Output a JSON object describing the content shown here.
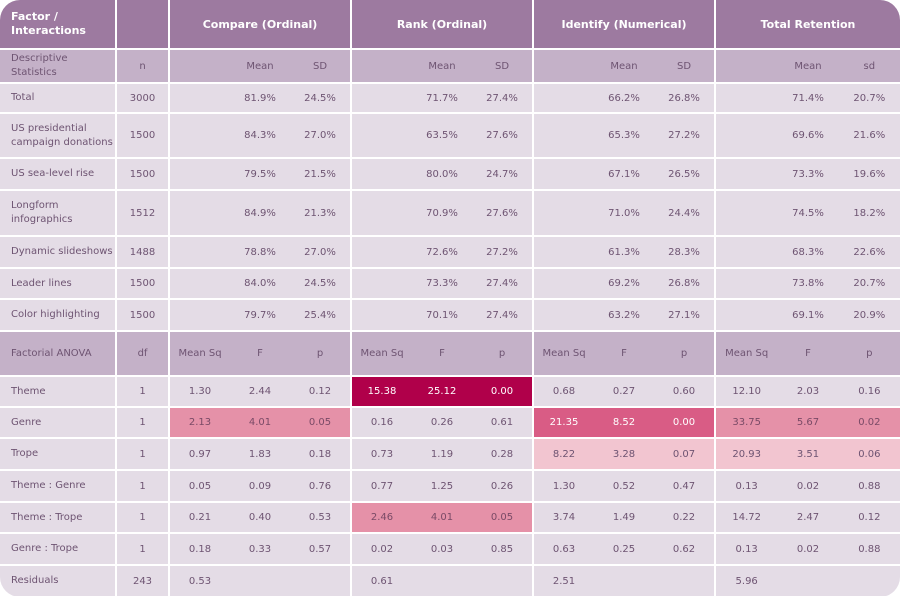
{
  "header": {
    "label": "Factor / Interactions",
    "groups": [
      "Compare (Ordinal)",
      "Rank (Ordinal)",
      "Identify (Numerical)",
      "Total Retention"
    ]
  },
  "descriptive_header": {
    "label": "Descriptive Statistics",
    "n": "n",
    "groups": [
      [
        "",
        "Mean",
        "SD"
      ],
      [
        "",
        "Mean",
        "SD"
      ],
      [
        "",
        "Mean",
        "SD"
      ],
      [
        "",
        "Mean",
        "sd"
      ]
    ]
  },
  "descriptive_rows": [
    {
      "label": "Total",
      "n": "3000",
      "groups": [
        [
          "",
          "81.9%",
          "24.5%"
        ],
        [
          "",
          "71.7%",
          "27.4%"
        ],
        [
          "",
          "66.2%",
          "26.8%"
        ],
        [
          "",
          "71.4%",
          "20.7%"
        ]
      ]
    },
    {
      "label": "US presidential campaign donations",
      "n": "1500",
      "groups": [
        [
          "",
          "84.3%",
          "27.0%"
        ],
        [
          "",
          "63.5%",
          "27.6%"
        ],
        [
          "",
          "65.3%",
          "27.2%"
        ],
        [
          "",
          "69.6%",
          "21.6%"
        ]
      ]
    },
    {
      "label": "US sea-level rise",
      "n": "1500",
      "groups": [
        [
          "",
          "79.5%",
          "21.5%"
        ],
        [
          "",
          "80.0%",
          "24.7%"
        ],
        [
          "",
          "67.1%",
          "26.5%"
        ],
        [
          "",
          "73.3%",
          "19.6%"
        ]
      ]
    },
    {
      "label": "Longform infographics",
      "n": "1512",
      "groups": [
        [
          "",
          "84.9%",
          "21.3%"
        ],
        [
          "",
          "70.9%",
          "27.6%"
        ],
        [
          "",
          "71.0%",
          "24.4%"
        ],
        [
          "",
          "74.5%",
          "18.2%"
        ]
      ]
    },
    {
      "label": "Dynamic slideshows",
      "n": "1488",
      "groups": [
        [
          "",
          "78.8%",
          "27.0%"
        ],
        [
          "",
          "72.6%",
          "27.2%"
        ],
        [
          "",
          "61.3%",
          "28.3%"
        ],
        [
          "",
          "68.3%",
          "22.6%"
        ]
      ]
    },
    {
      "label": "Leader lines",
      "n": "1500",
      "groups": [
        [
          "",
          "84.0%",
          "24.5%"
        ],
        [
          "",
          "73.3%",
          "27.4%"
        ],
        [
          "",
          "69.2%",
          "26.8%"
        ],
        [
          "",
          "73.8%",
          "20.7%"
        ]
      ]
    },
    {
      "label": "Color highlighting",
      "n": "1500",
      "groups": [
        [
          "",
          "79.7%",
          "25.4%"
        ],
        [
          "",
          "70.1%",
          "27.4%"
        ],
        [
          "",
          "63.2%",
          "27.1%"
        ],
        [
          "",
          "69.1%",
          "20.9%"
        ]
      ]
    }
  ],
  "anova_header": {
    "label": "Factorial ANOVA",
    "n": "df",
    "groups": [
      [
        "Mean Sq",
        "F",
        "p"
      ],
      [
        "Mean Sq",
        "F",
        "p"
      ],
      [
        "Mean Sq",
        "F",
        "p"
      ],
      [
        "Mean Sq",
        "F",
        "p"
      ]
    ]
  },
  "anova_rows": [
    {
      "label": "Theme",
      "n": "1",
      "groups": [
        [
          "1.30",
          "2.44",
          "0.12"
        ],
        [
          "15.38",
          "25.12",
          "0.00"
        ],
        [
          "0.68",
          "0.27",
          "0.60"
        ],
        [
          "12.10",
          "2.03",
          "0.16"
        ]
      ],
      "highlight": [
        "",
        "dark",
        "",
        ""
      ]
    },
    {
      "label": "Genre",
      "n": "1",
      "groups": [
        [
          "2.13",
          "4.01",
          "0.05"
        ],
        [
          "0.16",
          "0.26",
          "0.61"
        ],
        [
          "21.35",
          "8.52",
          "0.00"
        ],
        [
          "33.75",
          "5.67",
          "0.02"
        ]
      ],
      "highlight": [
        "lmed",
        "",
        "med",
        "lmed"
      ]
    },
    {
      "label": "Trope",
      "n": "1",
      "groups": [
        [
          "0.97",
          "1.83",
          "0.18"
        ],
        [
          "0.73",
          "1.19",
          "0.28"
        ],
        [
          "8.22",
          "3.28",
          "0.07"
        ],
        [
          "20.93",
          "3.51",
          "0.06"
        ]
      ],
      "highlight": [
        "",
        "",
        "light",
        "light"
      ]
    },
    {
      "label": "Theme : Genre",
      "n": "1",
      "groups": [
        [
          "0.05",
          "0.09",
          "0.76"
        ],
        [
          "0.77",
          "1.25",
          "0.26"
        ],
        [
          "1.30",
          "0.52",
          "0.47"
        ],
        [
          "0.13",
          "0.02",
          "0.88"
        ]
      ],
      "highlight": [
        "",
        "",
        "",
        ""
      ]
    },
    {
      "label": "Theme : Trope",
      "n": "1",
      "groups": [
        [
          "0.21",
          "0.40",
          "0.53"
        ],
        [
          "2.46",
          "4.01",
          "0.05"
        ],
        [
          "3.74",
          "1.49",
          "0.22"
        ],
        [
          "14.72",
          "2.47",
          "0.12"
        ]
      ],
      "highlight": [
        "",
        "lmed",
        "",
        ""
      ]
    },
    {
      "label": "Genre : Trope",
      "n": "1",
      "groups": [
        [
          "0.18",
          "0.33",
          "0.57"
        ],
        [
          "0.02",
          "0.03",
          "0.85"
        ],
        [
          "0.63",
          "0.25",
          "0.62"
        ],
        [
          "0.13",
          "0.02",
          "0.88"
        ]
      ],
      "highlight": [
        "",
        "",
        "",
        ""
      ]
    },
    {
      "label": "Residuals",
      "n": "243",
      "groups": [
        [
          "0.53",
          "",
          ""
        ],
        [
          "0.61",
          "",
          ""
        ],
        [
          "2.51",
          "",
          ""
        ],
        [
          "5.96",
          "",
          ""
        ]
      ],
      "highlight": [
        "",
        "",
        "",
        ""
      ]
    }
  ],
  "colors": {
    "header": "#9d7aa0",
    "subheader": "#c4b1c8",
    "cell": "#e4dce6",
    "highlight_dark": "#b0004a",
    "highlight_med": "#d95c85",
    "highlight_lmed": "#e591a8",
    "highlight_light": "#f2c5d0"
  }
}
